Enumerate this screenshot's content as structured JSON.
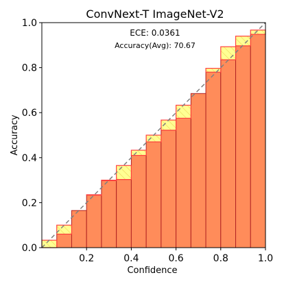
{
  "chart_data": {
    "type": "bar",
    "title": "ConvNext-T  ImageNet-V2",
    "xlabel": "Confidence",
    "ylabel": "Accuracy",
    "xlim": [
      0,
      1
    ],
    "ylim": [
      0,
      1
    ],
    "x_ticks": [
      "0.2",
      "0.4",
      "0.6",
      "0.8",
      "1.0"
    ],
    "y_ticks": [
      "0.0",
      "0.2",
      "0.4",
      "0.6",
      "0.8",
      "1.0"
    ],
    "annotations": {
      "ece": "ECE: 0.0361",
      "accuracy": "Accuracy(Avg): 70.67"
    },
    "bin_width": 0.0667,
    "bin_starts": [
      0.0,
      0.0667,
      0.1333,
      0.2,
      0.2667,
      0.3333,
      0.4,
      0.4667,
      0.5333,
      0.6,
      0.6667,
      0.7333,
      0.8,
      0.8667,
      0.9333
    ],
    "series": [
      {
        "name": "Accuracy",
        "values": [
          0.0,
          0.06,
          0.165,
          0.235,
          0.298,
          0.303,
          0.41,
          0.47,
          0.522,
          0.575,
          0.685,
          0.78,
          0.835,
          0.897,
          0.948
        ]
      },
      {
        "name": "Confidence",
        "values": [
          0.033,
          0.1,
          0.165,
          0.233,
          0.3,
          0.365,
          0.433,
          0.5,
          0.567,
          0.633,
          0.685,
          0.797,
          0.893,
          0.94,
          0.967
        ]
      }
    ],
    "diagonal": true,
    "colors": {
      "accuracy_fill": "#FF8C5A",
      "accuracy_edge": "#B22222",
      "gap_over": "#FFFF80",
      "gap_under": "#FFB300",
      "gap_edge": "#FF4040",
      "diagonal": "#808080"
    }
  }
}
